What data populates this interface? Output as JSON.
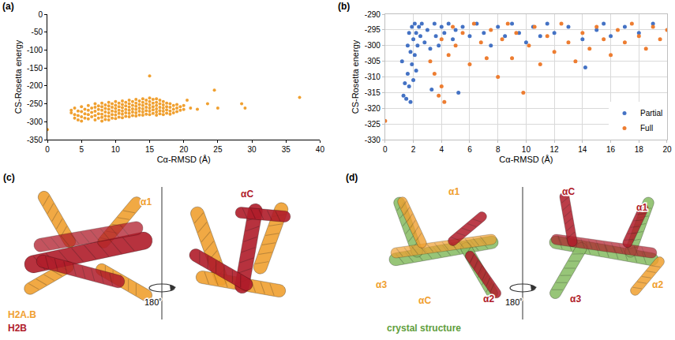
{
  "chart_data": [
    {
      "panel_label": "(a)",
      "type": "scatter",
      "marker": "circle",
      "color": "#f0a030",
      "x_label": "Cα-RMSD (Å)",
      "y_label": "CS-Rosetta energy",
      "xlim": [
        0,
        40
      ],
      "xticks": [
        0,
        5,
        10,
        15,
        20,
        25,
        30,
        35,
        40
      ],
      "ylim": [
        -350,
        0
      ],
      "yticks": [
        -350,
        -300,
        -250,
        -200,
        -150,
        -100,
        -50,
        0
      ],
      "grid": false,
      "x": [
        3.5,
        3.5,
        4,
        4,
        4,
        4.5,
        4.5,
        4.5,
        5,
        5,
        5,
        5,
        5.5,
        5.5,
        5.5,
        6,
        6,
        6,
        6,
        6.5,
        6.5,
        6.5,
        7,
        7,
        7,
        7,
        7,
        7.5,
        7.5,
        7.5,
        7.5,
        8,
        8,
        8,
        8,
        8,
        8,
        8.5,
        8.5,
        8.5,
        8.5,
        8.5,
        9,
        9,
        9,
        9,
        9,
        9,
        9.5,
        9.5,
        9.5,
        9.5,
        9.5,
        10,
        10,
        10,
        10,
        10,
        10,
        10.5,
        10.5,
        10.5,
        10.5,
        10.5,
        11,
        11,
        11,
        11,
        11,
        11,
        11.5,
        11.5,
        11.5,
        11.5,
        11.5,
        12,
        12,
        12,
        12,
        12,
        12,
        12.5,
        12.5,
        12.5,
        12.5,
        12.5,
        13,
        13,
        13,
        13,
        13,
        13,
        13.5,
        13.5,
        13.5,
        13.5,
        13.5,
        14,
        14,
        14,
        14,
        14,
        14,
        14.5,
        14.5,
        14.5,
        14.5,
        14.5,
        15,
        15,
        15,
        15,
        15,
        15,
        15.5,
        15.5,
        15.5,
        15.5,
        15.5,
        16,
        16,
        16,
        16,
        16,
        16,
        16.5,
        16.5,
        16.5,
        16.5,
        16.5,
        17,
        17,
        17,
        17,
        17,
        17.5,
        17.5,
        17.5,
        17.5,
        18,
        18,
        18,
        18,
        18.5,
        18.5,
        18.5,
        19,
        19,
        19,
        19.5,
        19.5,
        20,
        20,
        21,
        22,
        0,
        15,
        20.5,
        23.5,
        24.5,
        25,
        28.5,
        29,
        37
      ],
      "values": [
        -268,
        -275,
        -262,
        -280,
        -290,
        -270,
        -283,
        -295,
        -258,
        -272,
        -286,
        -298,
        -265,
        -278,
        -290,
        -255,
        -268,
        -280,
        -292,
        -262,
        -274,
        -286,
        -250,
        -260,
        -271,
        -283,
        -295,
        -256,
        -266,
        -278,
        -290,
        -248,
        -258,
        -268,
        -279,
        -288,
        -298,
        -253,
        -263,
        -273,
        -284,
        -294,
        -246,
        -256,
        -265,
        -275,
        -285,
        -295,
        -250,
        -260,
        -270,
        -280,
        -290,
        -244,
        -254,
        -263,
        -272,
        -281,
        -291,
        -248,
        -258,
        -268,
        -277,
        -287,
        -242,
        -252,
        -261,
        -270,
        -279,
        -289,
        -246,
        -256,
        -266,
        -275,
        -285,
        -240,
        -250,
        -259,
        -268,
        -277,
        -286,
        -244,
        -254,
        -264,
        -273,
        -283,
        -238,
        -248,
        -257,
        -266,
        -275,
        -284,
        -242,
        -252,
        -262,
        -271,
        -281,
        -236,
        -246,
        -255,
        -264,
        -273,
        -282,
        -240,
        -250,
        -260,
        -269,
        -279,
        -234,
        -244,
        -253,
        -262,
        -271,
        -280,
        -238,
        -248,
        -258,
        -267,
        -277,
        -236,
        -246,
        -255,
        -264,
        -273,
        -282,
        -240,
        -250,
        -260,
        -269,
        -278,
        -244,
        -253,
        -262,
        -271,
        -280,
        -248,
        -258,
        -267,
        -276,
        -250,
        -260,
        -270,
        -279,
        -255,
        -265,
        -275,
        -252,
        -262,
        -272,
        -258,
        -268,
        -255,
        -266,
        -262,
        -265,
        -322,
        -172,
        -240,
        -250,
        -212,
        -262,
        -250,
        -262,
        -232
      ]
    },
    {
      "panel_label": "(b)",
      "type": "scatter",
      "marker": "circle",
      "x_label": "Cα-RMSD (Å)",
      "y_label": "CS-Rosetta energy",
      "xlim": [
        0,
        20
      ],
      "xticks": [
        0,
        2,
        4,
        6,
        8,
        10,
        12,
        14,
        16,
        18,
        20
      ],
      "ylim": [
        -330,
        -290
      ],
      "yticks": [
        -330,
        -325,
        -320,
        -315,
        -310,
        -305,
        -300,
        -295,
        -290
      ],
      "grid": true,
      "legend": "lower right",
      "series": [
        {
          "name": "Partial",
          "color": "#4472c4",
          "x": [
            1.2,
            1.3,
            1.4,
            1.5,
            1.6,
            1.6,
            1.7,
            1.7,
            1.8,
            1.8,
            1.9,
            1.9,
            2.0,
            2.0,
            2.1,
            2.1,
            2.2,
            2.2,
            2.3,
            2.4,
            2.5,
            2.6,
            2.8,
            3.0,
            3.2,
            3.3,
            3.5,
            3.6,
            3.8,
            4.0,
            4.2,
            4.5,
            4.8,
            5.0,
            5.2,
            5.5,
            6.0,
            6.5,
            7.0,
            7.5,
            8.0,
            8.5,
            9.0,
            9.5,
            10.0,
            10.5,
            11.0,
            11.5,
            12.0,
            13.0,
            14.0,
            14.2,
            15.0,
            15.5,
            16.0,
            17.0,
            18.0,
            19.0
          ],
          "values": [
            -305,
            -316,
            -312,
            -317,
            -300,
            -309,
            -296,
            -313,
            -302,
            -318,
            -294,
            -306,
            -298,
            -311,
            -293,
            -303,
            -296,
            -308,
            -300,
            -294,
            -297,
            -293,
            -299,
            -295,
            -301,
            -314,
            -293,
            -297,
            -300,
            -294,
            -296,
            -293,
            -298,
            -295,
            -315,
            -294,
            -297,
            -293,
            -296,
            -300,
            -294,
            -297,
            -293,
            -296,
            -299,
            -294,
            -297,
            -293,
            -296,
            -294,
            -298,
            -307,
            -295,
            -293,
            -297,
            -294,
            -296,
            -293
          ]
        },
        {
          "name": "Full",
          "color": "#ed7d31",
          "x": [
            0,
            3.2,
            3.5,
            3.8,
            4.0,
            4.0,
            4.2,
            4.5,
            4.8,
            5.0,
            5.5,
            6.0,
            6.3,
            6.8,
            7.2,
            7.5,
            8.0,
            8.3,
            8.7,
            9.0,
            9.3,
            9.8,
            10.2,
            10.6,
            11.0,
            11.5,
            12.0,
            12.5,
            13.0,
            13.5,
            14.0,
            14.5,
            15.0,
            15.5,
            16.0,
            16.5,
            17.0,
            17.5,
            18.0,
            18.5,
            19.0,
            19.5,
            20.0
          ],
          "values": [
            -324,
            -305,
            -309,
            -316,
            -313,
            -298,
            -318,
            -303,
            -294,
            -300,
            -296,
            -306,
            -293,
            -299,
            -304,
            -295,
            -310,
            -298,
            -293,
            -304,
            -296,
            -315,
            -300,
            -294,
            -306,
            -297,
            -302,
            -293,
            -299,
            -305,
            -296,
            -301,
            -294,
            -298,
            -303,
            -295,
            -299,
            -293,
            -297,
            -301,
            -294,
            -298,
            -295
          ]
        }
      ]
    }
  ],
  "structure_panels": [
    {
      "panel_label": "(c)",
      "rotation": "180˚",
      "left_view_labels": [
        {
          "text": "α1",
          "color": "#f0a030"
        }
      ],
      "right_view_labels": [
        {
          "text": "αC",
          "color": "#b01c2a"
        }
      ],
      "key": [
        {
          "text": "H2A.B",
          "color": "#f0a030"
        },
        {
          "text": "H2B",
          "color": "#b01c2a"
        }
      ]
    },
    {
      "panel_label": "(d)",
      "rotation": "180˚",
      "left_view_labels": [
        {
          "text": "α1",
          "color": "#f0a030"
        },
        {
          "text": "α3",
          "color": "#f0a030"
        },
        {
          "text": "αC",
          "color": "#f0a030"
        },
        {
          "text": "α2",
          "color": "#b01c2a"
        }
      ],
      "right_view_labels": [
        {
          "text": "αC",
          "color": "#b01c2a"
        },
        {
          "text": "α1",
          "color": "#b01c2a"
        },
        {
          "text": "α3",
          "color": "#b01c2a"
        },
        {
          "text": "α2",
          "color": "#f0a030"
        }
      ],
      "caption": {
        "text": "crystal structure",
        "color": "#5f9e3c"
      }
    }
  ]
}
